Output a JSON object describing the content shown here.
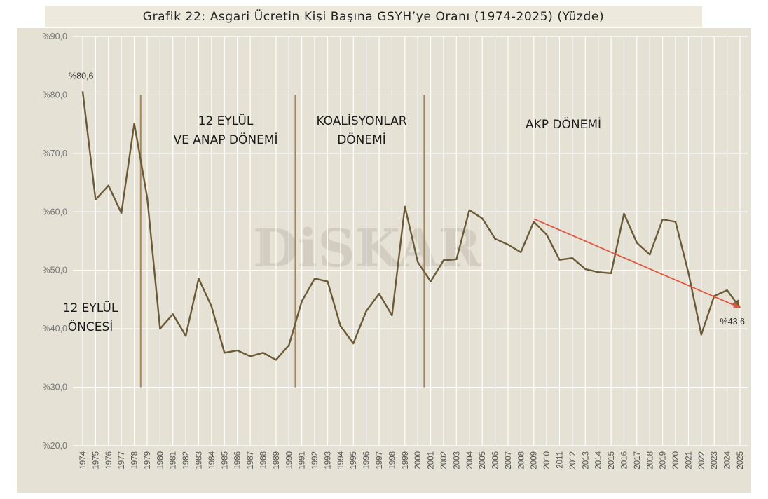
{
  "title": "Grafik 22: Asgari Ücretin Kişi Başına GSYH’ye Oranı (1974-2025) (Yüzde)",
  "watermark": "DiSKAR",
  "colors": {
    "line": "#6b5a36",
    "trend": "#e2553a",
    "divider": "#a5865a",
    "grid": "#ffffff",
    "panel": "#e6e1d5"
  },
  "chart_data": {
    "type": "line",
    "title": "Grafik 22: Asgari Ücretin Kişi Başına GSYH’ye Oranı (1974-2025) (Yüzde)",
    "xlabel": "",
    "ylabel": "",
    "ylim": [
      20,
      90
    ],
    "yticks": [
      20,
      30,
      40,
      50,
      60,
      70,
      80,
      90
    ],
    "ytick_labels": [
      "%20,0",
      "%30,0",
      "%40,0",
      "%50,0",
      "%60,0",
      "%70,0",
      "%80,0",
      "%90,0"
    ],
    "grid": "vertical and horizontal",
    "x": [
      1974,
      1975,
      1976,
      1977,
      1978,
      1979,
      1980,
      1981,
      1982,
      1983,
      1984,
      1985,
      1986,
      1987,
      1988,
      1989,
      1990,
      1991,
      1992,
      1993,
      1994,
      1995,
      1996,
      1997,
      1998,
      1999,
      2000,
      2001,
      2002,
      2003,
      2004,
      2005,
      2006,
      2007,
      2008,
      2009,
      2010,
      2011,
      2012,
      2013,
      2014,
      2015,
      2016,
      2017,
      2018,
      2019,
      2020,
      2021,
      2022,
      2023,
      2024,
      2025
    ],
    "series": [
      {
        "values": [
          80.6,
          62.1,
          64.5,
          59.8,
          75.1,
          62.5,
          40.0,
          42.5,
          38.8,
          48.6,
          43.8,
          35.9,
          36.3,
          35.3,
          35.9,
          34.7,
          37.2,
          44.7,
          48.6,
          48.1,
          40.5,
          37.5,
          43.0,
          46.0,
          42.3,
          60.9,
          51.4,
          48.1,
          51.7,
          51.9,
          60.3,
          58.9,
          55.4,
          54.4,
          53.1,
          58.3,
          56.1,
          51.8,
          52.1,
          50.2,
          49.7,
          49.5,
          59.7,
          54.7,
          52.7,
          58.7,
          58.3,
          49.6,
          39.0,
          45.6,
          46.6,
          43.6
        ]
      }
    ],
    "trendline": {
      "x_start": 2009,
      "y_start": 58.8,
      "x_end": 2025,
      "y_end": 43.6
    },
    "period_dividers": [
      1978.5,
      1990.5,
      2000.5
    ],
    "period_labels": [
      {
        "lines": [
          "12 EYLÜL",
          "ÖNCESİ"
        ]
      },
      {
        "lines": [
          "12 EYLÜL",
          "VE ANAP DÖNEMİ"
        ]
      },
      {
        "lines": [
          "KOALİSYONLAR",
          "DÖNEMİ"
        ]
      },
      {
        "lines": [
          "AKP DÖNEMİ"
        ]
      }
    ],
    "annotations": [
      {
        "text": "%80,6",
        "x": 1974,
        "y": 80.6
      },
      {
        "text": "%43,6",
        "x": 2025,
        "y": 43.6
      }
    ]
  }
}
